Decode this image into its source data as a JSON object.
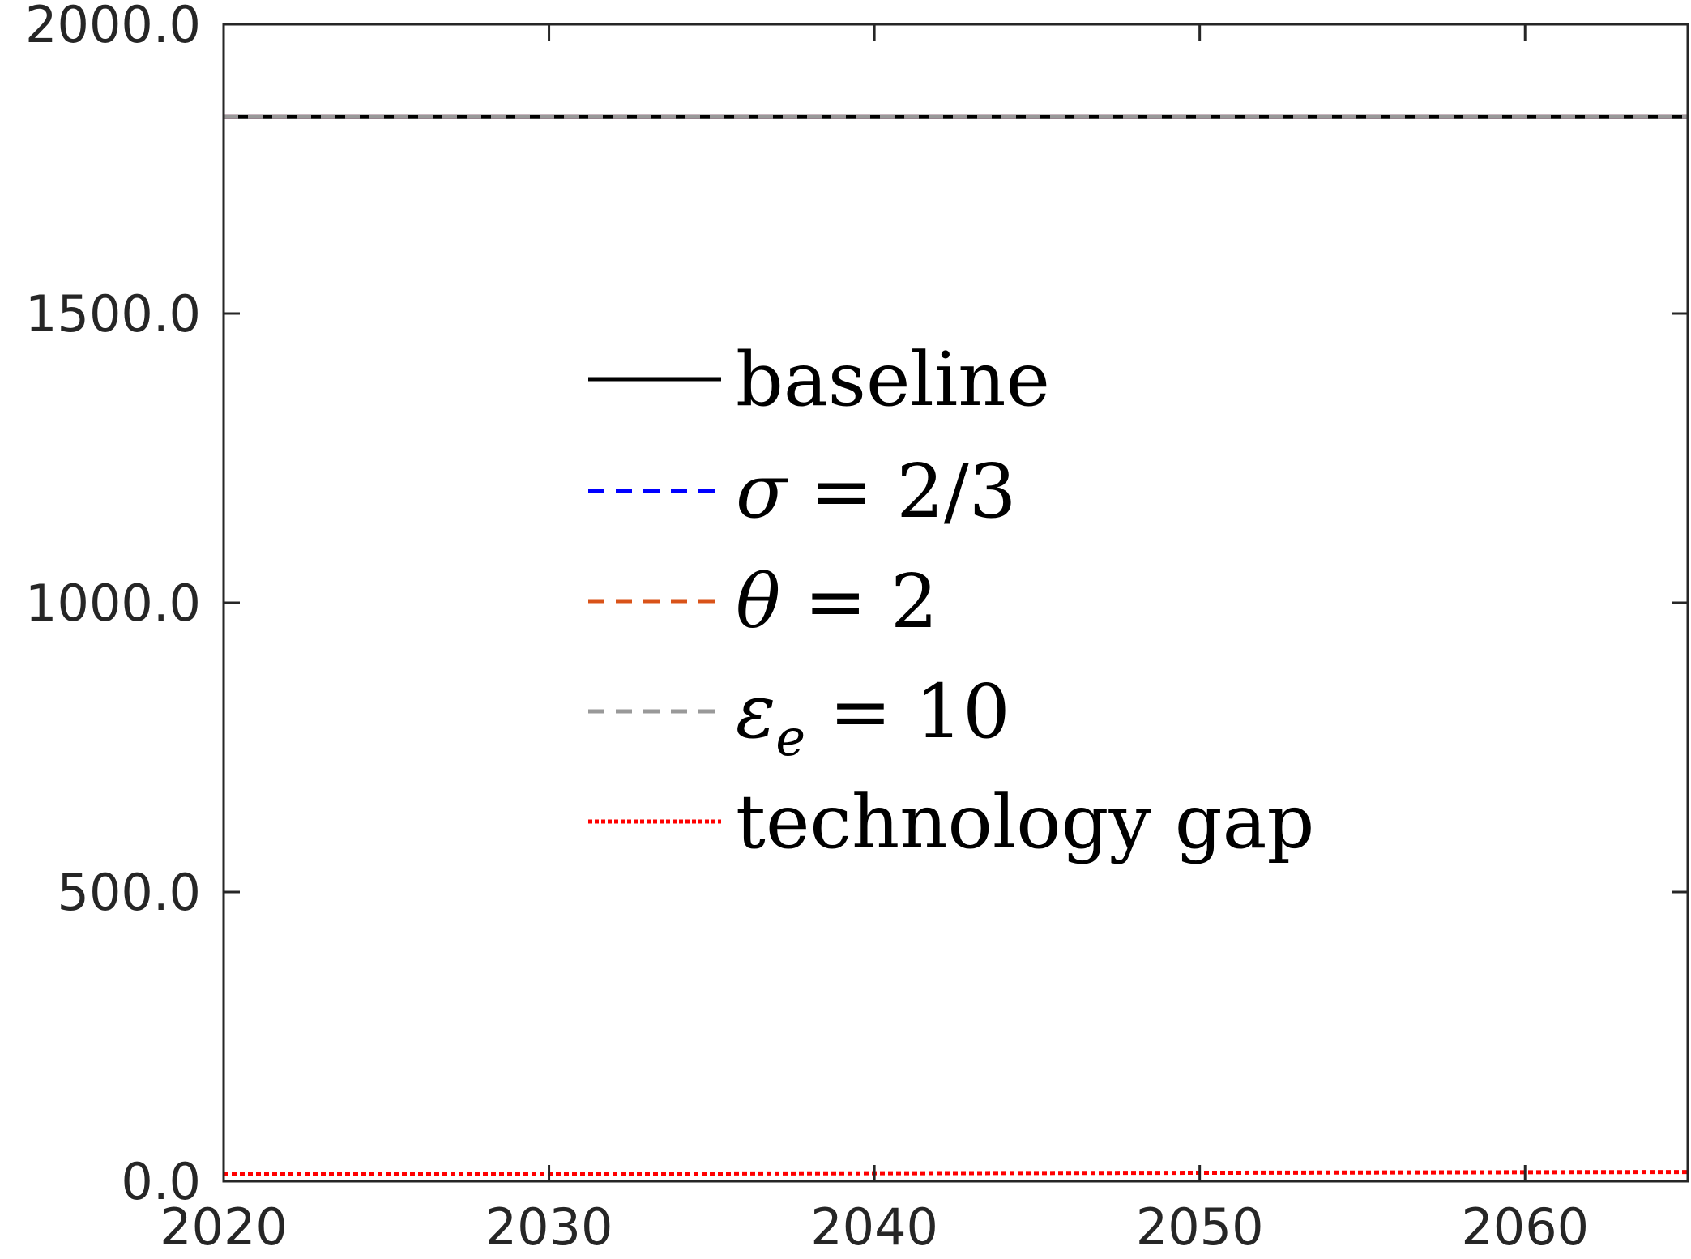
{
  "chart_data": {
    "type": "line",
    "title": "",
    "xlabel": "",
    "ylabel": "",
    "xlim": [
      2020,
      2065
    ],
    "ylim": [
      0,
      2000
    ],
    "x_ticks": [
      2020,
      2030,
      2040,
      2050,
      2060
    ],
    "y_ticks": [
      0,
      500,
      1000,
      1500,
      2000
    ],
    "x_tick_labels": [
      "2020",
      "2030",
      "2040",
      "2050",
      "2060"
    ],
    "y_tick_labels": [
      "0.0",
      "500.0",
      "1000.0",
      "1500.0",
      "2000.0"
    ],
    "grid": false,
    "legend_position": "center",
    "x": [
      2020,
      2065
    ],
    "series": [
      {
        "name": "baseline",
        "values": [
          1840,
          1840
        ],
        "color": "#000000",
        "style": "solid"
      },
      {
        "name": "σ = 2/3",
        "values": [
          1840,
          1840
        ],
        "color": "#0000ff",
        "style": "dashed"
      },
      {
        "name": "θ = 2",
        "values": [
          1840,
          1840
        ],
        "color": "#d95319",
        "style": "dashed"
      },
      {
        "name": "ε",
        "name_subscript": "e",
        "name_suffix": " = 10",
        "values": [
          1840,
          1840
        ],
        "color": "#999999",
        "style": "dashed"
      },
      {
        "name": "technology gap",
        "values": [
          12,
          16
        ],
        "color": "#ff0000",
        "style": "dotted"
      }
    ]
  }
}
